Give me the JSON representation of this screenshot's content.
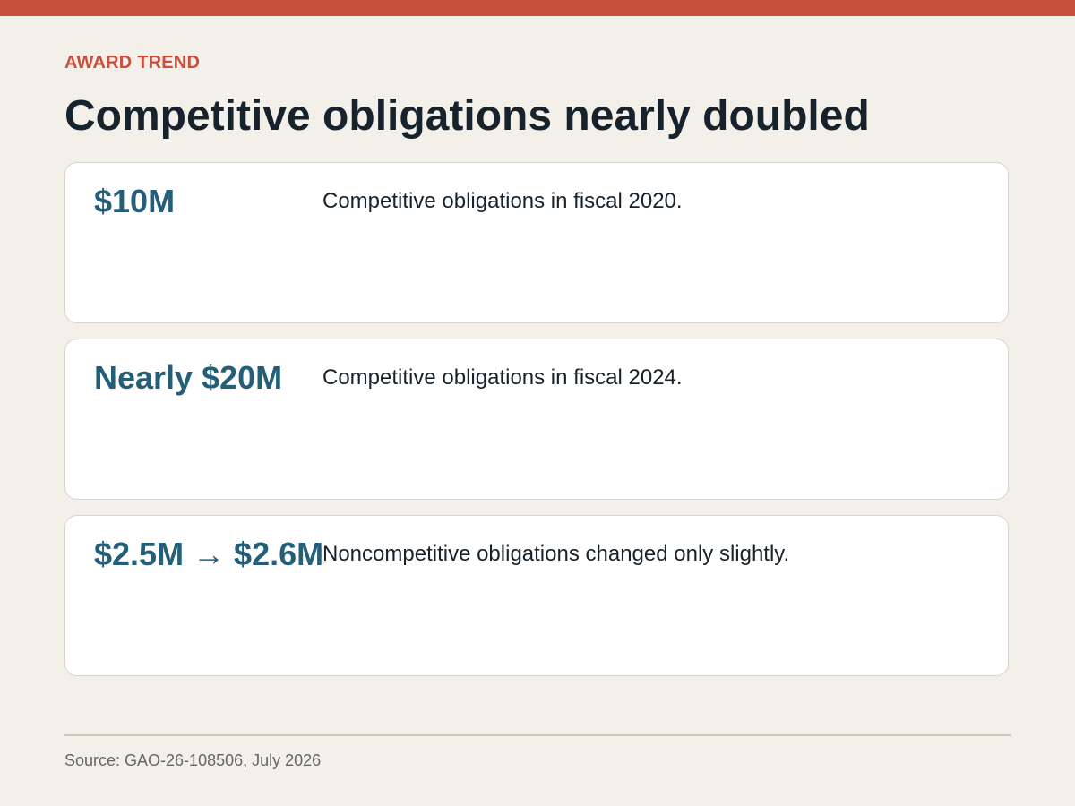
{
  "header": {
    "eyebrow": "AWARD TREND",
    "title": "Competitive obligations nearly doubled"
  },
  "cards": [
    {
      "stat": "$10M",
      "description": "Competitive obligations in fiscal 2020."
    },
    {
      "stat": "Nearly $20M",
      "description": "Competitive obligations in fiscal 2024."
    },
    {
      "stat": "$2.5M → $2.6M",
      "description": "Noncompetitive obligations changed only slightly."
    }
  ],
  "footer": {
    "source": "Source: GAO-26-108506, July 2026"
  },
  "colors": {
    "accent": "#c94f3d",
    "stat": "#245f7a",
    "background": "#f3f0e9",
    "card": "#ffffff"
  }
}
